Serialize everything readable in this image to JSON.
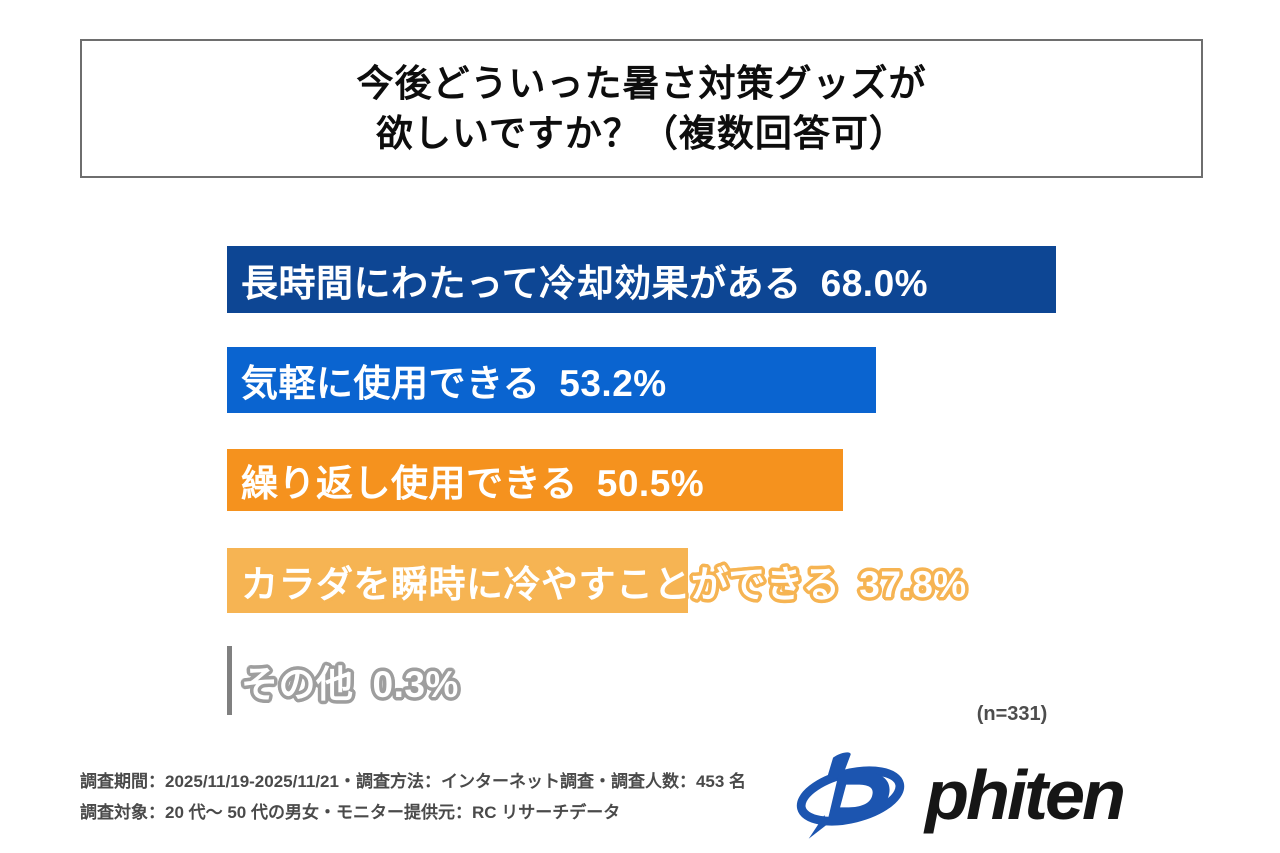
{
  "title": {
    "lines": [
      "今後どういった暑さ対策グッズが",
      "欲しいですか？（複数回答可）"
    ]
  },
  "chart_data": {
    "type": "bar",
    "orientation": "horizontal",
    "unit": "%",
    "title": "今後どういった暑さ対策グッズが欲しいですか？（複数回答可）",
    "categories": [
      "長時間にわたって冷却効果がある",
      "気軽に使用できる",
      "繰り返し使用できる",
      "カラダを瞬時に冷やすことができる",
      "その他"
    ],
    "values": [
      68.0,
      53.2,
      50.5,
      37.8,
      0.3
    ],
    "xlim": [
      0,
      100
    ],
    "grid": false,
    "legend": "none",
    "bar_colors": [
      "#0D4694",
      "#0A64D0",
      "#F5921E",
      "#F6B453",
      "#808080"
    ],
    "label_styles": [
      {
        "mode": "solid"
      },
      {
        "mode": "solid"
      },
      {
        "mode": "solid"
      },
      {
        "mode": "outline",
        "outline_color": "#F6B453"
      },
      {
        "mode": "outline",
        "outline_color": "#9E9E9E"
      }
    ],
    "sample_label": "(n=331)"
  },
  "footnotes": {
    "line1": "調査期間：2025/11/19-2025/11/21・調査方法：インターネット調査・調査人数：453 名",
    "line2": "調査対象：20 代〜 50 代の男女・モニター提供元：RC リサーチデータ"
  },
  "logo": {
    "wordmark": "phiten",
    "mark_color": "#1C55B0",
    "text_color": "#161616"
  }
}
